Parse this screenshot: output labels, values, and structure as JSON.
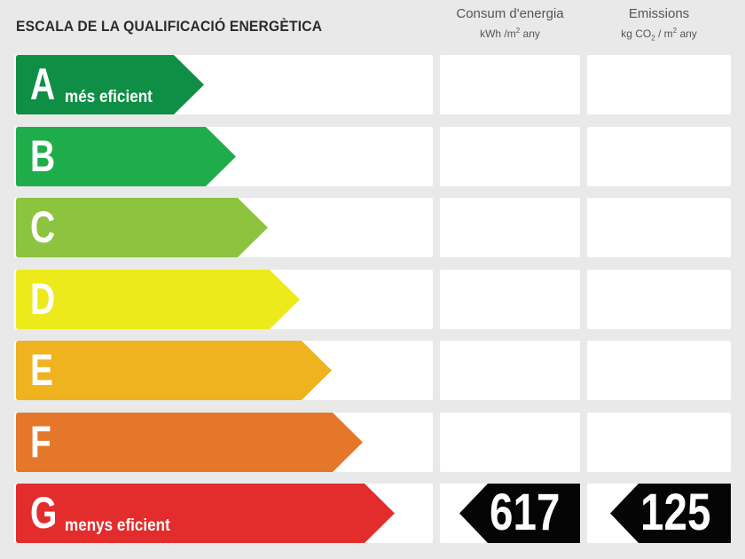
{
  "title": "ESCALA DE LA QUALIFICACIÓ ENERGÈTICA",
  "columns": {
    "energy": {
      "heading": "Consum d'energia",
      "unit_prefix": "kWh /m",
      "unit_sup": "2",
      "unit_suffix": " any"
    },
    "emissions": {
      "heading": "Emissions",
      "unit_prefix": "kg CO",
      "unit_sub": "2",
      "unit_mid": " / m",
      "unit_sup": "2",
      "unit_suffix": " any"
    }
  },
  "ratings": [
    {
      "letter": "A",
      "label": "més eficient",
      "color": "#0f8f46"
    },
    {
      "letter": "B",
      "label": "",
      "color": "#1fad4b"
    },
    {
      "letter": "C",
      "label": "",
      "color": "#8cc43f"
    },
    {
      "letter": "D",
      "label": "",
      "color": "#ecea1a"
    },
    {
      "letter": "E",
      "label": "",
      "color": "#efb31f"
    },
    {
      "letter": "F",
      "label": "",
      "color": "#e5772a"
    },
    {
      "letter": "G",
      "label": "menys eficient",
      "color": "#e32c2c"
    }
  ],
  "result": {
    "rating": "G",
    "energy_value": "617",
    "emissions_value": "125",
    "badge_color": "#050505"
  }
}
